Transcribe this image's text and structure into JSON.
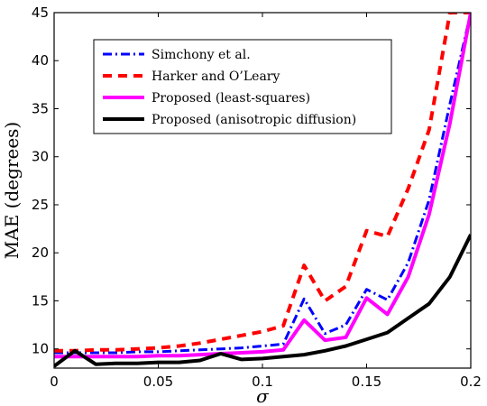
{
  "chart_data": {
    "type": "line",
    "xlabel": "σ",
    "ylabel": "MAE (degrees)",
    "xlim": [
      0,
      0.2
    ],
    "ylim": [
      8,
      45
    ],
    "xticks": [
      "0",
      "0.05",
      "0.1",
      "0.15",
      "0.2"
    ],
    "yticks": [
      "10",
      "15",
      "20",
      "25",
      "30",
      "35",
      "40",
      "45"
    ],
    "grid": false,
    "legend_position": "top-left",
    "x": [
      0,
      0.01,
      0.02,
      0.03,
      0.04,
      0.05,
      0.06,
      0.07,
      0.08,
      0.09,
      0.1,
      0.11,
      0.12,
      0.13,
      0.14,
      0.15,
      0.16,
      0.17,
      0.18,
      0.19,
      0.2
    ],
    "series": [
      {
        "name": "Simchony et al.",
        "color": "#0000ff",
        "style": "dashdot",
        "values": [
          9.6,
          9.6,
          9.6,
          9.6,
          9.7,
          9.7,
          9.8,
          9.9,
          10.0,
          10.1,
          10.3,
          10.5,
          15.2,
          11.6,
          12.5,
          16.2,
          15.1,
          19.0,
          25.5,
          35.5,
          45.0
        ]
      },
      {
        "name": "Harker and O’Leary",
        "color": "#ff0000",
        "style": "dashed",
        "values": [
          9.8,
          9.8,
          9.9,
          9.9,
          10.0,
          10.1,
          10.3,
          10.6,
          11.0,
          11.4,
          11.8,
          12.4,
          18.7,
          15.0,
          16.5,
          22.3,
          21.7,
          26.7,
          32.8,
          45.0,
          45.0
        ]
      },
      {
        "name": "Proposed (least-squares)",
        "color": "#ff00ff",
        "style": "solid",
        "values": [
          9.2,
          9.2,
          9.2,
          9.2,
          9.2,
          9.3,
          9.3,
          9.4,
          9.5,
          9.6,
          9.7,
          9.9,
          13.0,
          10.9,
          11.2,
          15.3,
          13.6,
          17.5,
          24.0,
          33.5,
          45.0
        ]
      },
      {
        "name": "Proposed (anisotropic diffusion)",
        "color": "#000000",
        "style": "solid",
        "values": [
          8.2,
          9.8,
          8.4,
          8.5,
          8.5,
          8.6,
          8.6,
          8.8,
          9.5,
          8.9,
          9.0,
          9.2,
          9.4,
          9.8,
          10.3,
          11.0,
          11.7,
          13.2,
          14.7,
          17.5,
          21.9
        ]
      }
    ]
  }
}
